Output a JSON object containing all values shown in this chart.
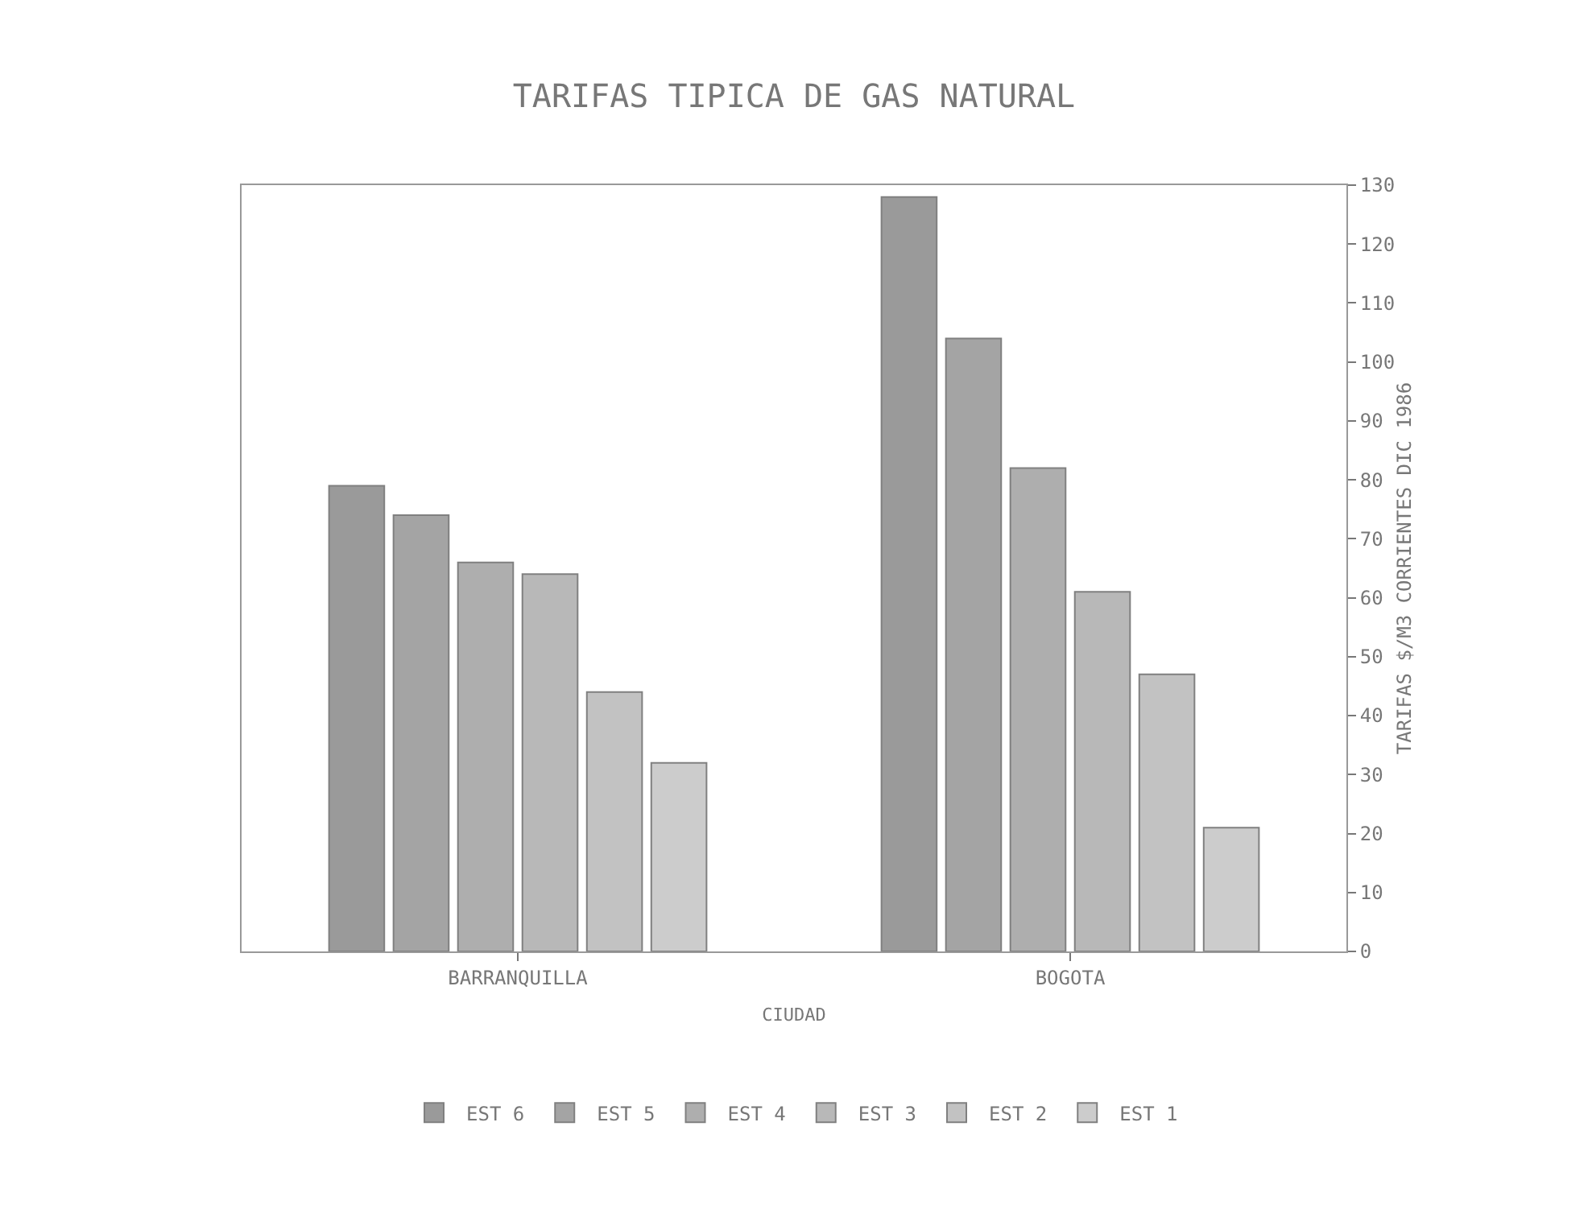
{
  "chart_data": {
    "type": "bar",
    "title": "TARIFAS TIPICA DE GAS NATURAL",
    "xlabel": "CIUDAD",
    "ylabel": "TARIFAS $/M3 CORRIENTES DIC 1986",
    "categories": [
      "BARRANQUILLA",
      "BOGOTA"
    ],
    "series": [
      {
        "name": "EST 6",
        "color": "#9a9a9a",
        "values": [
          79,
          128
        ]
      },
      {
        "name": "EST 5",
        "color": "#a4a4a4",
        "values": [
          74,
          104
        ]
      },
      {
        "name": "EST 4",
        "color": "#aeaeae",
        "values": [
          66,
          82
        ]
      },
      {
        "name": "EST 3",
        "color": "#b8b8b8",
        "values": [
          64,
          61
        ]
      },
      {
        "name": "EST 2",
        "color": "#c2c2c2",
        "values": [
          44,
          47
        ]
      },
      {
        "name": "EST 1",
        "color": "#cccccc",
        "values": [
          32,
          21
        ]
      }
    ],
    "ylim": [
      0,
      130
    ],
    "yticks": [
      0,
      10,
      20,
      30,
      40,
      50,
      60,
      70,
      80,
      90,
      100,
      110,
      120,
      130
    ],
    "grid": false,
    "legend": "bottom"
  }
}
